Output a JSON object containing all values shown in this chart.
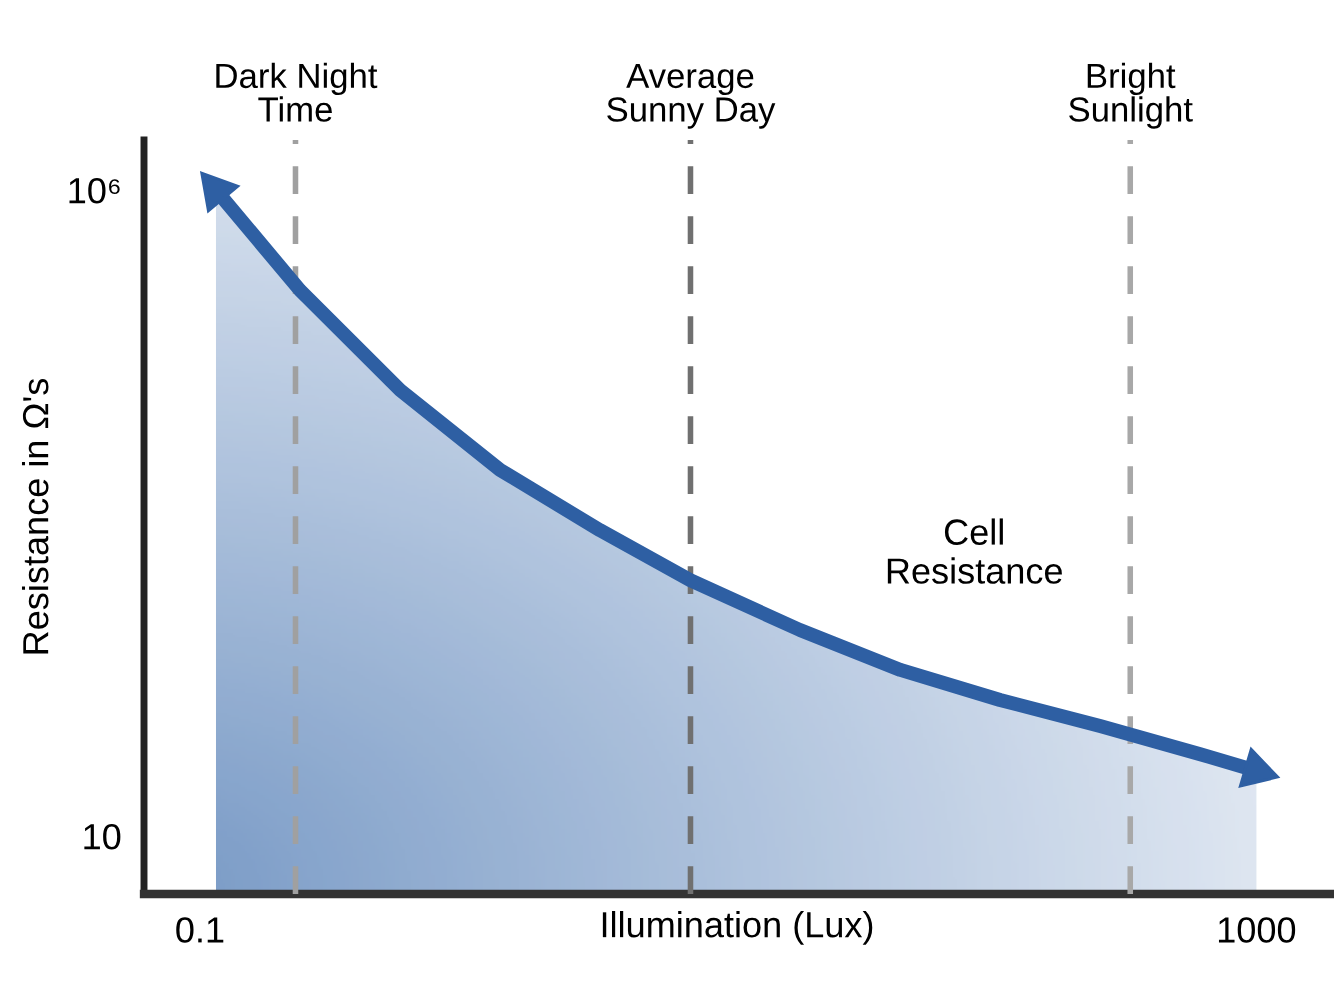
{
  "chart_data": {
    "type": "area",
    "xlabel": "Illumination (Lux)",
    "ylabel": "Resistance in Ω's",
    "log": "xy",
    "xlim": [
      0.0614,
      1900
    ],
    "ylim": [
      3.56,
      2440000
    ],
    "xticks": [
      0.1,
      1000
    ],
    "yticks": [
      {
        "value": 1000000,
        "label": "10⁶"
      },
      10
    ],
    "x": [
      0.115,
      0.239,
      0.573,
      1.37,
      3.27,
      7.18,
      18.7,
      44.9,
      107,
      256,
      613,
      1000
    ],
    "series": [
      {
        "color": "#2e5fa3",
        "values": [
          1000000,
          168000,
          28300,
          6810,
          2330,
          957,
          393,
          193,
          113,
          71,
          43,
          32
        ]
      }
    ],
    "ref_lines": [
      {
        "axis": "x",
        "value": 0.23,
        "label": "Dark Night\nTime",
        "color": "#a0a0a0",
        "line_style": "dashed"
      },
      {
        "axis": "x",
        "value": 7.2,
        "label": "Average\nSunny Day",
        "color": "#707070",
        "line_style": "dashed"
      },
      {
        "axis": "x",
        "value": 333,
        "label": "Bright\nSunlight",
        "color": "#a8a8a8",
        "line_style": "dashed"
      }
    ],
    "annotations": [
      "Cell\nResistance"
    ],
    "grid": false,
    "legend": false
  }
}
